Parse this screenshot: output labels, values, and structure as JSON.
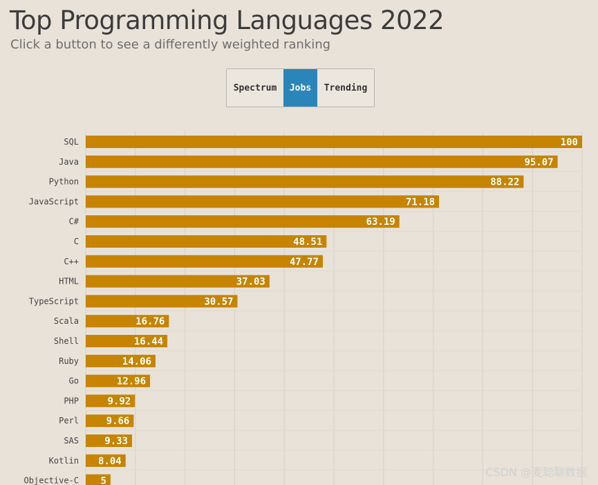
{
  "header": {
    "title": "Top Programming Languages 2022",
    "subtitle": "Click a button to see a differently weighted ranking"
  },
  "buttons": [
    {
      "label": "Spectrum",
      "active": false
    },
    {
      "label": "Jobs",
      "active": true
    },
    {
      "label": "Trending",
      "active": false
    }
  ],
  "colors": {
    "bar": "#c68400",
    "active_button": "#2a86b8",
    "grid": "#d6d0c4"
  },
  "chart_data": {
    "type": "bar",
    "orientation": "horizontal",
    "categories": [
      "SQL",
      "Java",
      "Python",
      "JavaScript",
      "C#",
      "C",
      "C++",
      "HTML",
      "TypeScript",
      "Scala",
      "Shell",
      "Ruby",
      "Go",
      "PHP",
      "Perl",
      "SAS",
      "Kotlin",
      "Objective-C"
    ],
    "values": [
      100,
      95.07,
      88.22,
      71.18,
      63.19,
      48.51,
      47.77,
      37.03,
      30.57,
      16.76,
      16.44,
      14.06,
      12.96,
      9.92,
      9.66,
      9.33,
      8.04,
      5
    ],
    "xlim": [
      0,
      100
    ],
    "grid": true
  },
  "watermark": "CSDN @麦聪聊数据"
}
